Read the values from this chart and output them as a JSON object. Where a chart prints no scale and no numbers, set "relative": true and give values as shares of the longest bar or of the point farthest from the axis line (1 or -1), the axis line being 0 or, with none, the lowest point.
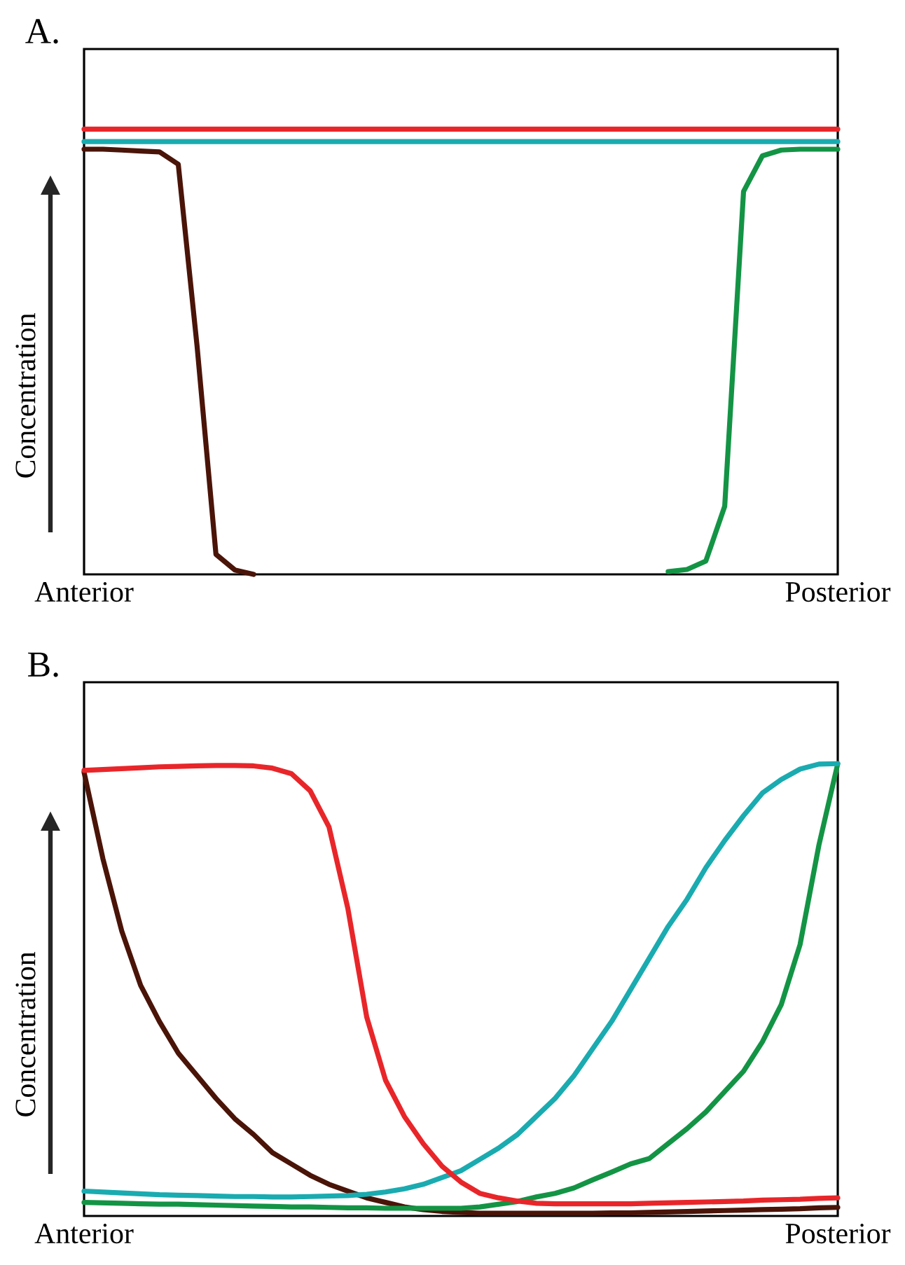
{
  "chart_data": [
    {
      "type": "line",
      "title": "A.",
      "ylabel": "Concentration",
      "relative": true,
      "categories": [
        "Anterior",
        null,
        null,
        null,
        null,
        null,
        null,
        null,
        null,
        null,
        null,
        null,
        null,
        null,
        null,
        null,
        null,
        null,
        null,
        null,
        null,
        null,
        null,
        null,
        null,
        null,
        null,
        null,
        null,
        null,
        null,
        null,
        null,
        null,
        null,
        null,
        null,
        null,
        null,
        null,
        "Posterior"
      ],
      "series": [
        {
          "color": "#4a1408",
          "values": [
            0.955,
            0.955,
            0.953,
            0.951,
            0.949,
            0.921,
            0.512,
            0.045,
            0.01,
            0,
            null,
            null,
            null,
            null,
            null,
            null,
            null,
            null,
            null,
            null,
            null,
            null,
            null,
            null,
            null,
            null,
            null,
            null,
            null,
            null,
            null,
            null,
            null,
            null,
            null,
            null,
            null,
            null,
            null,
            null,
            null
          ]
        },
        {
          "color": "#139445",
          "values": [
            null,
            null,
            null,
            null,
            null,
            null,
            null,
            null,
            null,
            null,
            null,
            null,
            null,
            null,
            null,
            null,
            null,
            null,
            null,
            null,
            null,
            null,
            null,
            null,
            null,
            null,
            null,
            null,
            null,
            null,
            null,
            0.006,
            0.011,
            0.03,
            0.153,
            0.86,
            0.94,
            0.953,
            0.955,
            0.955,
            0.955
          ]
        },
        {
          "color": "#e8262a",
          "values": [
            1,
            1,
            1,
            1,
            1,
            1,
            1,
            1,
            1,
            1,
            1,
            1,
            1,
            1,
            1,
            1,
            1,
            1,
            1,
            1,
            1,
            1,
            1,
            1,
            1,
            1,
            1,
            1,
            1,
            1,
            1,
            1,
            1,
            1,
            1,
            1,
            1,
            1,
            1,
            1,
            1
          ]
        },
        {
          "color": "#1aabb0",
          "values": [
            0.972,
            0.972,
            0.972,
            0.972,
            0.972,
            0.972,
            0.972,
            0.972,
            0.972,
            0.972,
            0.972,
            0.972,
            0.972,
            0.972,
            0.972,
            0.972,
            0.972,
            0.972,
            0.972,
            0.972,
            0.972,
            0.972,
            0.972,
            0.972,
            0.972,
            0.972,
            0.972,
            0.972,
            0.972,
            0.972,
            0.972,
            0.972,
            0.972,
            0.972,
            0.972,
            0.972,
            0.972,
            0.972,
            0.972,
            0.972,
            0.972
          ]
        }
      ]
    },
    {
      "type": "line",
      "title": "B.",
      "ylabel": "Concentration",
      "relative": true,
      "categories": [
        "Anterior",
        null,
        null,
        null,
        null,
        null,
        null,
        null,
        null,
        null,
        null,
        null,
        null,
        null,
        null,
        null,
        null,
        null,
        null,
        null,
        null,
        null,
        null,
        null,
        null,
        null,
        null,
        null,
        null,
        null,
        null,
        null,
        null,
        null,
        null,
        null,
        null,
        null,
        null,
        null,
        "Posterior"
      ],
      "series": [
        {
          "color": "#4a1408",
          "values": [
            0.981,
            0.79,
            0.63,
            0.51,
            0.43,
            0.36,
            0.31,
            0.26,
            0.215,
            0.18,
            0.14,
            0.115,
            0.09,
            0.07,
            0.055,
            0.04,
            0.03,
            0.02,
            0.014,
            0.01,
            0.008,
            0.006,
            0.006,
            0.006,
            0.006,
            0.006,
            0.006,
            0.006,
            0.007,
            0.007,
            0.008,
            0.009,
            0.01,
            0.011,
            0.012,
            0.013,
            0.014,
            0.015,
            0.016,
            0.018,
            0.019
          ]
        },
        {
          "color": "#139445",
          "values": [
            0.03,
            0.029,
            0.028,
            0.027,
            0.026,
            0.026,
            0.025,
            0.024,
            0.023,
            0.022,
            0.021,
            0.02,
            0.02,
            0.019,
            0.018,
            0.018,
            0.017,
            0.017,
            0.017,
            0.017,
            0.017,
            0.02,
            0.026,
            0.032,
            0.042,
            0.05,
            0.062,
            0.08,
            0.097,
            0.115,
            0.127,
            0.16,
            0.193,
            0.23,
            0.275,
            0.32,
            0.385,
            0.467,
            0.6,
            0.82,
            1
          ]
        },
        {
          "color": "#1aabb0",
          "values": [
            0.055,
            0.053,
            0.051,
            0.049,
            0.047,
            0.046,
            0.045,
            0.044,
            0.043,
            0.043,
            0.042,
            0.042,
            0.043,
            0.044,
            0.045,
            0.048,
            0.053,
            0.06,
            0.07,
            0.085,
            0.1,
            0.125,
            0.15,
            0.18,
            0.22,
            0.26,
            0.31,
            0.37,
            0.43,
            0.5,
            0.57,
            0.64,
            0.7,
            0.77,
            0.83,
            0.885,
            0.935,
            0.965,
            0.988,
            0.999,
            1
          ]
        },
        {
          "color": "#e8262a",
          "values": [
            0.985,
            0.987,
            0.989,
            0.991,
            0.993,
            0.994,
            0.995,
            0.996,
            0.996,
            0.995,
            0.99,
            0.978,
            0.94,
            0.86,
            0.68,
            0.44,
            0.3,
            0.22,
            0.16,
            0.11,
            0.075,
            0.05,
            0.04,
            0.033,
            0.028,
            0.027,
            0.027,
            0.027,
            0.027,
            0.027,
            0.028,
            0.029,
            0.03,
            0.031,
            0.032,
            0.033,
            0.035,
            0.036,
            0.037,
            0.039,
            0.04
          ]
        }
      ]
    }
  ]
}
